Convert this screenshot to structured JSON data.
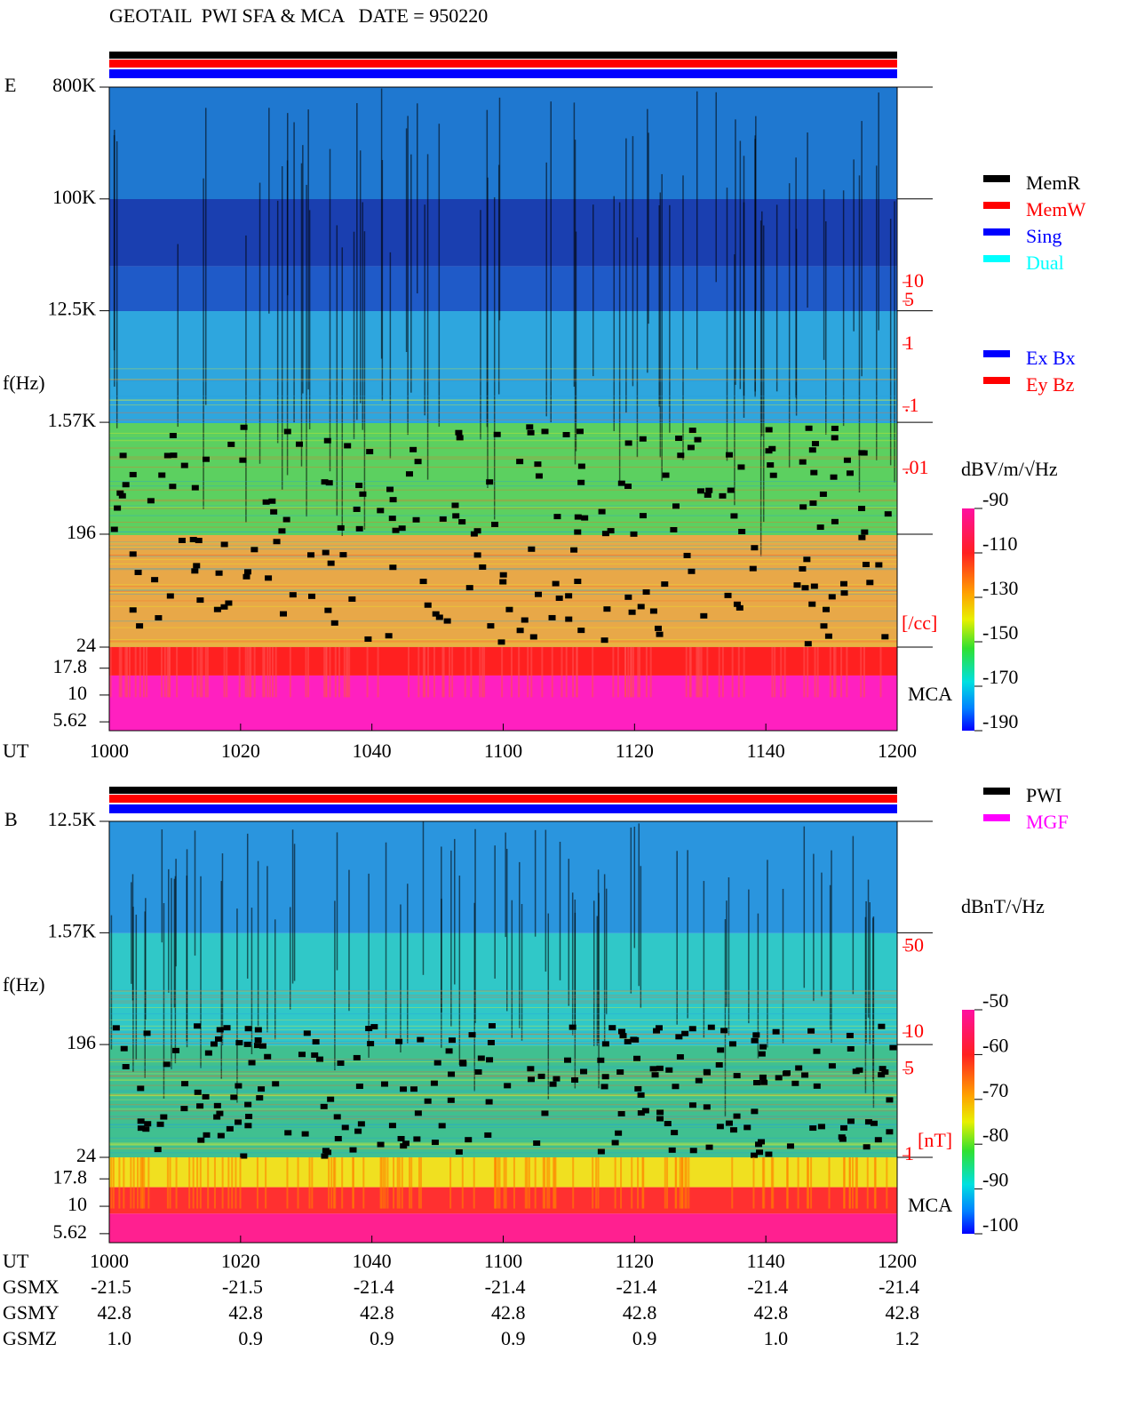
{
  "title": "GEOTAIL  PWI SFA & MCA   DATE = 950220",
  "chart_data": [
    {
      "type": "spectrogram",
      "panel_label": "E",
      "y_label": "f(Hz)",
      "x_label": "UT",
      "categories": [
        "1000",
        "1020",
        "1040",
        "1100",
        "1120",
        "1140",
        "1200"
      ],
      "log_y": true,
      "ylim": [
        24,
        800000
      ],
      "yticks": [
        {
          "value": 800000,
          "label": "800K"
        },
        {
          "value": 100000,
          "label": "100K"
        },
        {
          "value": 12500,
          "label": "12.5K"
        },
        {
          "value": 1570,
          "label": "1.57K"
        },
        196,
        24
      ],
      "mca_label": "MCA",
      "mca_ylim": [
        4.65,
        28.0
      ],
      "mca_yticks": [
        17.8,
        10,
        5.62
      ],
      "scale_ylim": [
        1.39e-05,
        13800
      ],
      "scale_yticks": [
        10,
        5,
        1,
        {
          "value": 0.1,
          "label": ".1"
        },
        {
          "value": 0.01,
          "label": ".01"
        }
      ],
      "scale_unit": "[/cc]",
      "scale_color": "#ff0000",
      "colorbar_label": "dBV/m/√Hz",
      "clim": [
        -190,
        -90
      ],
      "cticks": [
        -90,
        -110,
        -130,
        -150,
        -170,
        -190
      ],
      "legend": [
        {
          "name": "MemR",
          "color": "#000000"
        },
        {
          "name": "MemW",
          "color": "#ff0000"
        },
        {
          "name": "Sing",
          "color": "#0000ff"
        },
        {
          "name": "Dual",
          "color": "#00ffff"
        }
      ],
      "legend2": [
        {
          "name": "Ex Bx",
          "color": "#0000ff"
        },
        {
          "name": "Ey Bz",
          "color": "#ff0000"
        }
      ]
    },
    {
      "type": "spectrogram",
      "panel_label": "B",
      "y_label": "f(Hz)",
      "x_label": "UT",
      "categories": [
        "1000",
        "1020",
        "1040",
        "1100",
        "1120",
        "1140",
        "1200"
      ],
      "log_y": true,
      "ylim": [
        24,
        12500
      ],
      "yticks": [
        {
          "value": 12500,
          "label": "12.5K"
        },
        {
          "value": 1570,
          "label": "1.57K"
        },
        196,
        24
      ],
      "mca_label": "MCA",
      "mca_ylim": [
        4.65,
        28.0
      ],
      "mca_yticks": [
        17.8,
        10,
        5.62
      ],
      "scale_ylim": [
        0.97,
        530
      ],
      "scale_yticks": [
        50,
        10,
        5,
        1
      ],
      "scale_unit": "[nT]",
      "scale_color": "#ff0000",
      "colorbar_label": "dBnT/√Hz",
      "clim": [
        -100,
        -50
      ],
      "cticks": [
        -50,
        -60,
        -70,
        -80,
        -90,
        -100
      ],
      "legend": [
        {
          "name": "PWI",
          "color": "#000000"
        },
        {
          "name": "MGF",
          "color": "#ff00ff"
        }
      ]
    }
  ],
  "orbit": {
    "labels": [
      "GSMX",
      "GSMY",
      "GSMZ"
    ],
    "rows": [
      [
        -21.5,
        -21.5,
        -21.4,
        -21.4,
        -21.4,
        -21.4,
        -21.4
      ],
      [
        42.8,
        42.8,
        42.8,
        42.8,
        42.8,
        42.8,
        42.8
      ],
      [
        {
          "value": 1,
          "label": "1.0"
        },
        0.9,
        0.9,
        0.9,
        0.9,
        {
          "value": 1,
          "label": "1.0"
        },
        1.2
      ]
    ]
  }
}
